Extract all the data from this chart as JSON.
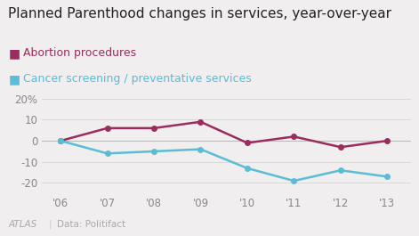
{
  "title": "Planned Parenthood changes in services, year-over-year",
  "years": [
    2006,
    2007,
    2008,
    2009,
    2010,
    2011,
    2012,
    2013
  ],
  "year_labels": [
    "'06",
    "'07",
    "'08",
    "'09",
    "'10",
    "'11",
    "'12",
    "'13"
  ],
  "abortion": [
    0,
    6,
    6,
    9,
    -1,
    2,
    -3,
    0
  ],
  "cancer": [
    0,
    -6,
    -5,
    -4,
    -13,
    -19,
    -14,
    -17
  ],
  "abortion_color": "#9b2c5e",
  "cancer_color": "#5bbcd6",
  "background_color": "#f0eeee",
  "legend_labels": [
    "Abortion procedures",
    "Cancer screening / preventative services"
  ],
  "ylim": [
    -25,
    22
  ],
  "yticks": [
    -20,
    -10,
    0,
    10,
    20
  ],
  "ytick_labels": [
    "-20",
    "-10",
    "0",
    "10",
    "20%"
  ],
  "source_text": "Data: Politifact",
  "atlas_text": "ATLAS",
  "title_fontsize": 11,
  "legend_fontsize": 9,
  "tick_fontsize": 8.5,
  "linewidth": 1.8,
  "marker_size": 4
}
